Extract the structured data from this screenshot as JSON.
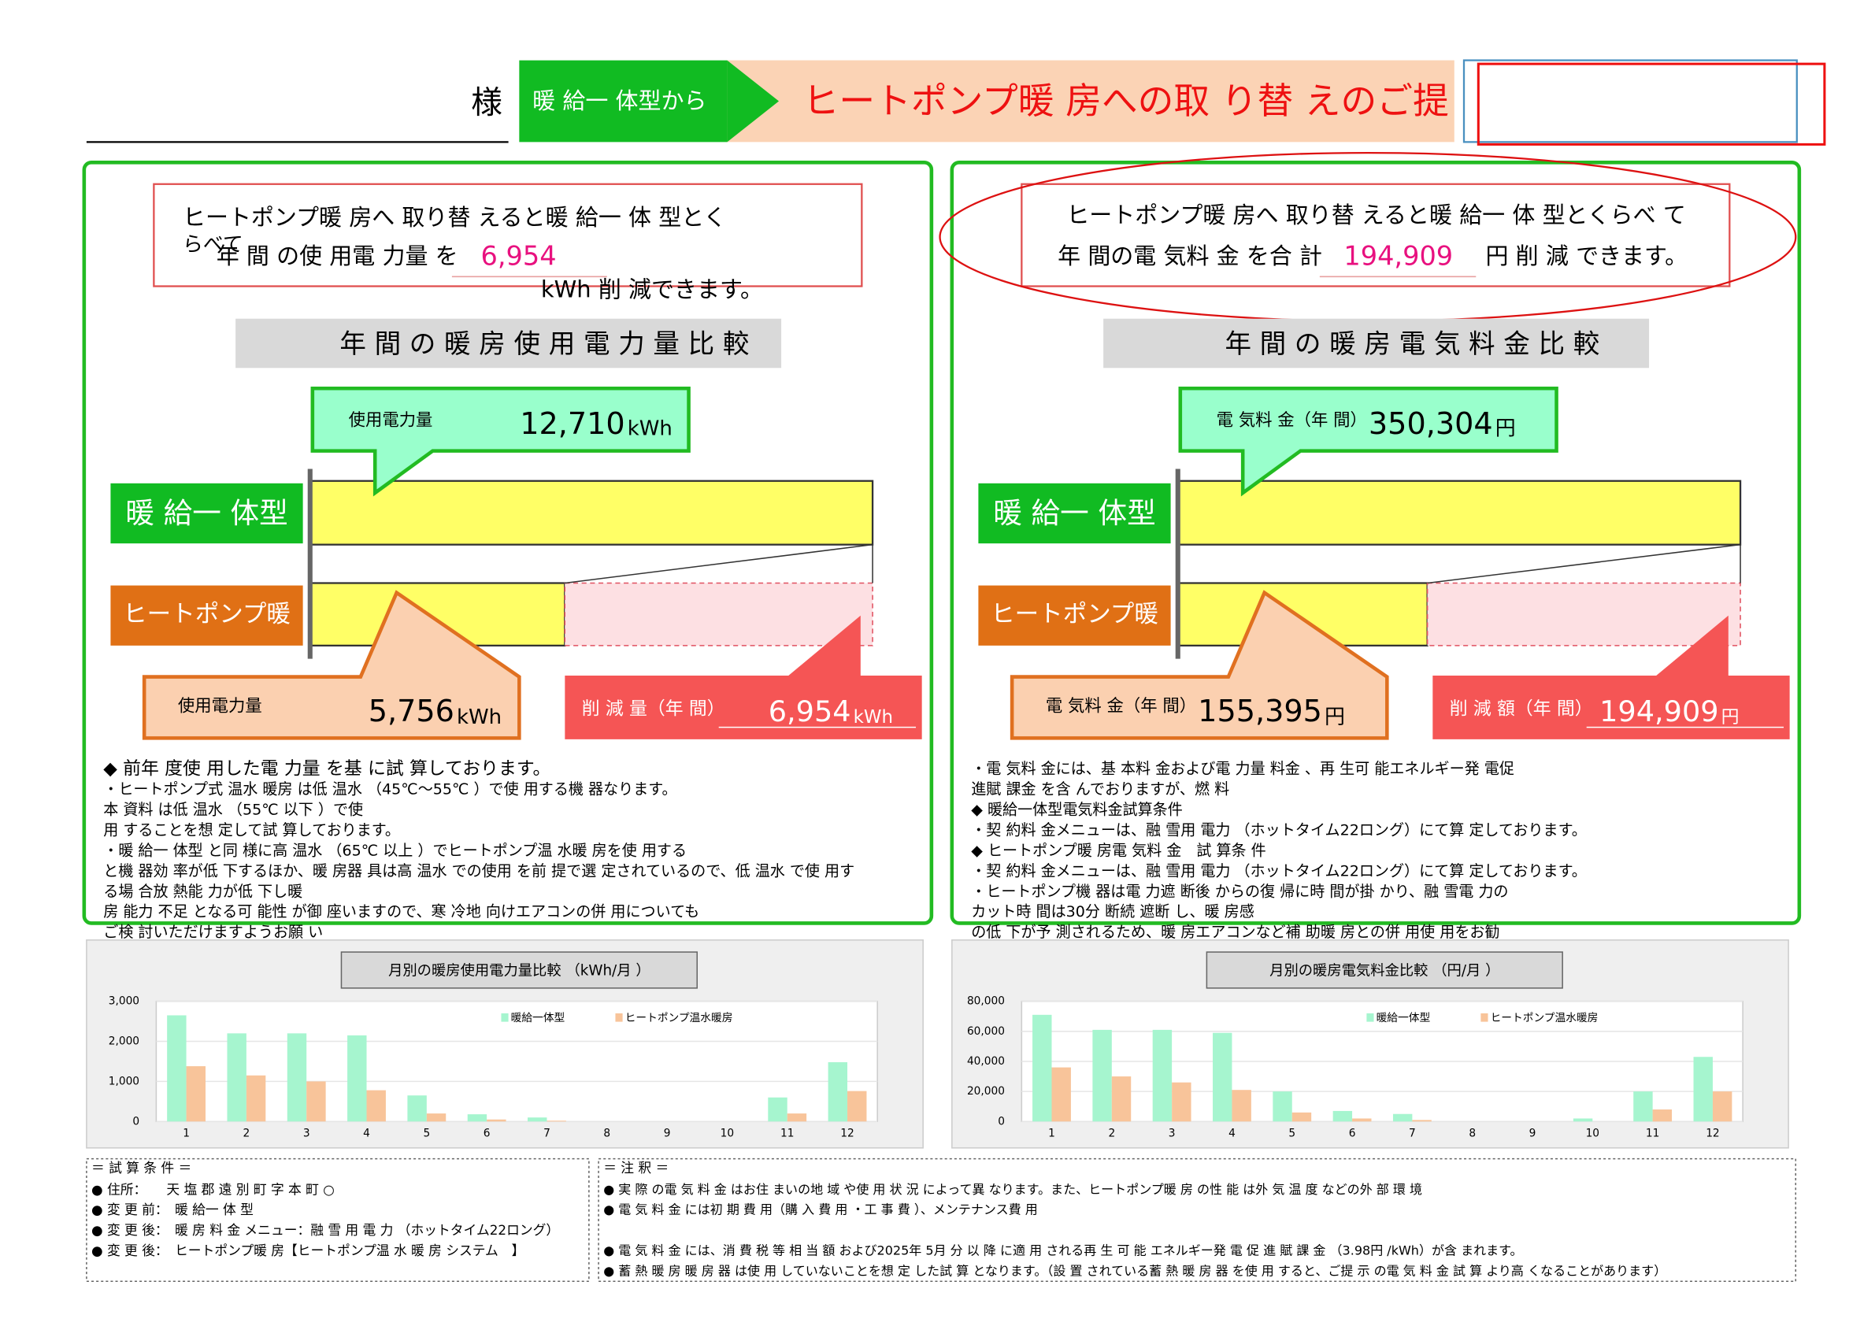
{
  "header": {
    "honorific": "様",
    "from_label": "暖 給一 体型から",
    "title": "ヒートポンプ暖 房への取 り替 えのご提"
  },
  "panels": [
    {
      "message": {
        "lines": [
          "ヒートポンプ暖 房へ 取り替 えると暖 給一 体 型とく",
          "らべて"
        ],
        "prefix": "年 間 の使 用電 力量 を",
        "suffix": "kWh 削 減できます。"
      },
      "section_title": "年 間 の 暖 房 使 用 電 力 量 比 較",
      "categories": [
        "暖 給一 体型",
        "ヒートポンプ暖"
      ],
      "values": [
        12710,
        5756
      ],
      "value_labels": [
        "12,710",
        "5,756"
      ],
      "unit": "kWh",
      "callout_labels": [
        "使用電力量",
        "使用電力量"
      ],
      "reduction_label": "削 減 量（年 間）",
      "reduction": {
        "value": 6954,
        "label": "6,954"
      },
      "notes": [
        "◆ 前年 度使 用した電 力量 を基 に試 算しております。",
        "・ヒートポンプ式 温水 暖房 は低 温水 （45℃～55℃ ）で使 用する機 器なります。",
        "本 資料 は低 温水 （55℃ 以下 ）で使",
        "用 することを想 定して試 算しております。",
        "・暖 給一 体型 と同 様に高 温水 （65℃ 以上 ）でヒートポンプ温 水暖 房を使 用する",
        "と機 器効 率が低 下するほか、暖 房器 具は高 温水 での使用 を前 提で選 定されているので、低 温水 で使 用す",
        "る場 合放 熱能 力が低 下し暖",
        "房 能力 不足 となる可 能性 が御 座いますので、寒 冷地 向けエアコンの併 用についても",
        "ご検 討いただけますようお願 い"
      ]
    },
    {
      "message": {
        "lines": [
          "ヒートポンプ暖 房へ 取り替 えると暖 給一 体 型とくらべ て"
        ],
        "prefix": "年 間の電 気料 金 を合 計",
        "suffix": "円 削 減 できます。"
      },
      "section_title": "年 間 の 暖 房 電 気 料 金 比 較",
      "categories": [
        "暖 給一 体型",
        "ヒートポンプ暖"
      ],
      "values": [
        350304,
        155395
      ],
      "value_labels": [
        "350,304",
        "155,395"
      ],
      "unit": "円",
      "callout_labels": [
        "電 気料 金（年 間）",
        "電 気料 金（年 間）"
      ],
      "reduction_label": "削 減 額（年 間）",
      "reduction": {
        "value": 194909,
        "label": "194,909"
      },
      "notes": [
        "・電 気料 金には、基 本料 金および電 力量 料金 、再 生可 能エネルギー発 電促",
        "進賦 課金 を含 んでおりますが、燃 料",
        "◆ 暖給一体型電気料金試算条件",
        "・契 約料 金メニューは、融 雪用 電力 （ホットタイム22ロング）にて算 定しております。",
        "◆ ヒートポンプ暖 房電 気料 金　試 算条 件",
        "・契 約料 金メニューは、融 雪用 電力 （ホットタイム22ロング）にて算 定しております。",
        "・ヒートポンプ機 器は電 力遮 断後 からの復 帰に時 間が掛 かり、融 雪電 力の",
        "カット時 間は30分 断続 遮断 し、暖 房感",
        "の低 下が予 測されるため、暖 房エアコンなど補 助暖 房との併 用使 用をお勧"
      ]
    }
  ],
  "monthly_charts": [
    {
      "type": "bar",
      "title": "月別の暖房使用電力量比較 （kWh/月 ）",
      "categories": [
        1,
        2,
        3,
        4,
        5,
        6,
        7,
        8,
        9,
        10,
        11,
        12
      ],
      "series": [
        {
          "name": "暖給一体型",
          "color": "#a6f5cf",
          "values": [
            2650,
            2200,
            2200,
            2150,
            650,
            180,
            100,
            0,
            0,
            0,
            600,
            1480
          ]
        },
        {
          "name": "ヒートポンプ温水暖房",
          "color": "#f8c49a",
          "values": [
            1380,
            1150,
            1000,
            780,
            200,
            50,
            20,
            0,
            0,
            0,
            200,
            760
          ]
        }
      ],
      "ylim": [
        0,
        3000
      ],
      "yticks": [
        0,
        {
          "value": 1000,
          "label": "1,000"
        },
        {
          "value": 2000,
          "label": "2,000"
        },
        {
          "value": 3000,
          "label": "3,000"
        }
      ]
    },
    {
      "type": "bar",
      "title": "月別の暖房電気料金比較 （円/月 ）",
      "categories": [
        1,
        2,
        3,
        4,
        5,
        6,
        7,
        8,
        9,
        10,
        11,
        12
      ],
      "series": [
        {
          "name": "暖給一体型",
          "color": "#a6f5cf",
          "values": [
            71000,
            61000,
            61000,
            59000,
            20000,
            7000,
            5000,
            0,
            0,
            2000,
            20000,
            43000
          ]
        },
        {
          "name": "ヒートポンプ温水暖房",
          "color": "#f8c49a",
          "values": [
            36000,
            30000,
            26000,
            21000,
            6000,
            2000,
            1000,
            0,
            0,
            0,
            8000,
            20000
          ]
        }
      ],
      "ylim": [
        0,
        80000
      ],
      "yticks": [
        0,
        {
          "value": 20000,
          "label": "20,000"
        },
        {
          "value": 40000,
          "label": "40,000"
        },
        {
          "value": 60000,
          "label": "60,000"
        },
        {
          "value": 80000,
          "label": "80,000"
        }
      ]
    }
  ],
  "conditions": {
    "title": "＝ 試 算 条 件 ＝",
    "lines": [
      "● 住所：　　天 塩 郡 遠 別 町 字 本 町 ○",
      "● 変 更 前：　暖 給一 体 型",
      "● 変 更 後：　暖 房 料 金 メニュー：融 雪 用 電 力 （ホットタイム22ロング）",
      "● 変 更 後：　ヒートポンプ暖 房【ヒートポンプ温 水 暖 房 システム　】"
    ]
  },
  "notes": {
    "title": "＝ 注 釈 ＝",
    "lines": [
      "● 実 際 の電 気 料 金 はお住 まいの地 域 や使 用 状 況 によって異 なります。また、ヒートポンプ暖 房 の性 能 は外 気 温 度 などの外 部 環 境",
      "● 電 気 料 金 には初 期 費 用（購 入 費 用 ・工 事 費 ）、メンテナンス費 用",
      "● 電 気 料 金 には、消 費 税 等 相 当 額 および2025年 5月 分 以 降 に適 用 される再 生 可 能 エネルギー発 電 促 進 賦 課 金 （3.98円 /kWh）が含 まれます。",
      "● 蓄 熱 暖 房 暖 房 器 は使 用 していないことを想 定 した試 算 となります。（設 置 されている蓄 熱 暖 房 器 を使 用 すると、ご提 示 の電 気 料 金 試 算 より高 くなることがあります）"
    ]
  }
}
